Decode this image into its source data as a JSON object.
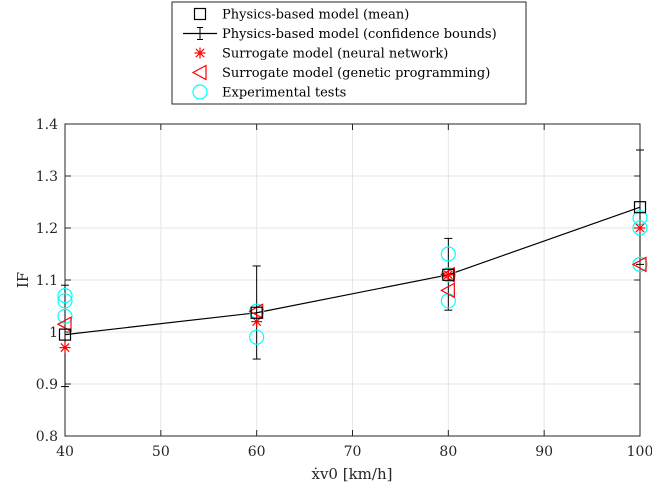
{
  "chart_data": {
    "type": "scatter",
    "xlabel": "ẋv0 [km/h]",
    "ylabel": "IF",
    "xlim": [
      40,
      100
    ],
    "ylim": [
      0.8,
      1.4
    ],
    "xticks": [
      40,
      50,
      60,
      70,
      80,
      90,
      100
    ],
    "yticks": [
      0.8,
      0.9,
      1.0,
      1.1,
      1.2,
      1.3,
      1.4
    ],
    "xtick_labels": [
      "40",
      "50",
      "60",
      "70",
      "80",
      "90",
      "100"
    ],
    "ytick_labels": [
      "0.8",
      "0.9",
      "1",
      "1.1",
      "1.2",
      "1.3",
      "1.4"
    ],
    "grid": true,
    "legend_position": "top-center (outside)",
    "series": [
      {
        "name": "Physics-based model (mean)",
        "marker": "square",
        "color": "#000000",
        "x": [
          40,
          60,
          80,
          100
        ],
        "y": [
          0.995,
          1.037,
          1.11,
          1.24
        ]
      },
      {
        "name": "Physics-based model (confidence bounds)",
        "marker": "errorbar-line",
        "color": "#000000",
        "x": [
          40,
          60,
          80,
          100
        ],
        "y": [
          0.995,
          1.037,
          1.11,
          1.24
        ],
        "lower": [
          0.895,
          0.948,
          1.042,
          1.13
        ],
        "upper": [
          1.09,
          1.127,
          1.18,
          1.35
        ]
      },
      {
        "name": "Surrogate model (neural network)",
        "marker": "asterisk",
        "color": "#ff0000",
        "x": [
          40,
          60,
          80,
          100
        ],
        "y": [
          0.97,
          1.02,
          1.11,
          1.2
        ]
      },
      {
        "name": "Surrogate model (genetic programming)",
        "marker": "triangle-left",
        "color": "#ff0000",
        "x": [
          40,
          60,
          80,
          80,
          100
        ],
        "y": [
          1.015,
          1.04,
          1.08,
          1.11,
          1.13
        ]
      },
      {
        "name": "Experimental tests",
        "marker": "circle",
        "color": "#00ffff",
        "x": [
          40,
          40,
          40,
          60,
          60,
          80,
          80,
          80,
          100,
          100,
          100
        ],
        "y": [
          1.07,
          1.06,
          1.03,
          1.04,
          0.99,
          1.15,
          1.11,
          1.06,
          1.22,
          1.2,
          1.13
        ]
      }
    ]
  }
}
